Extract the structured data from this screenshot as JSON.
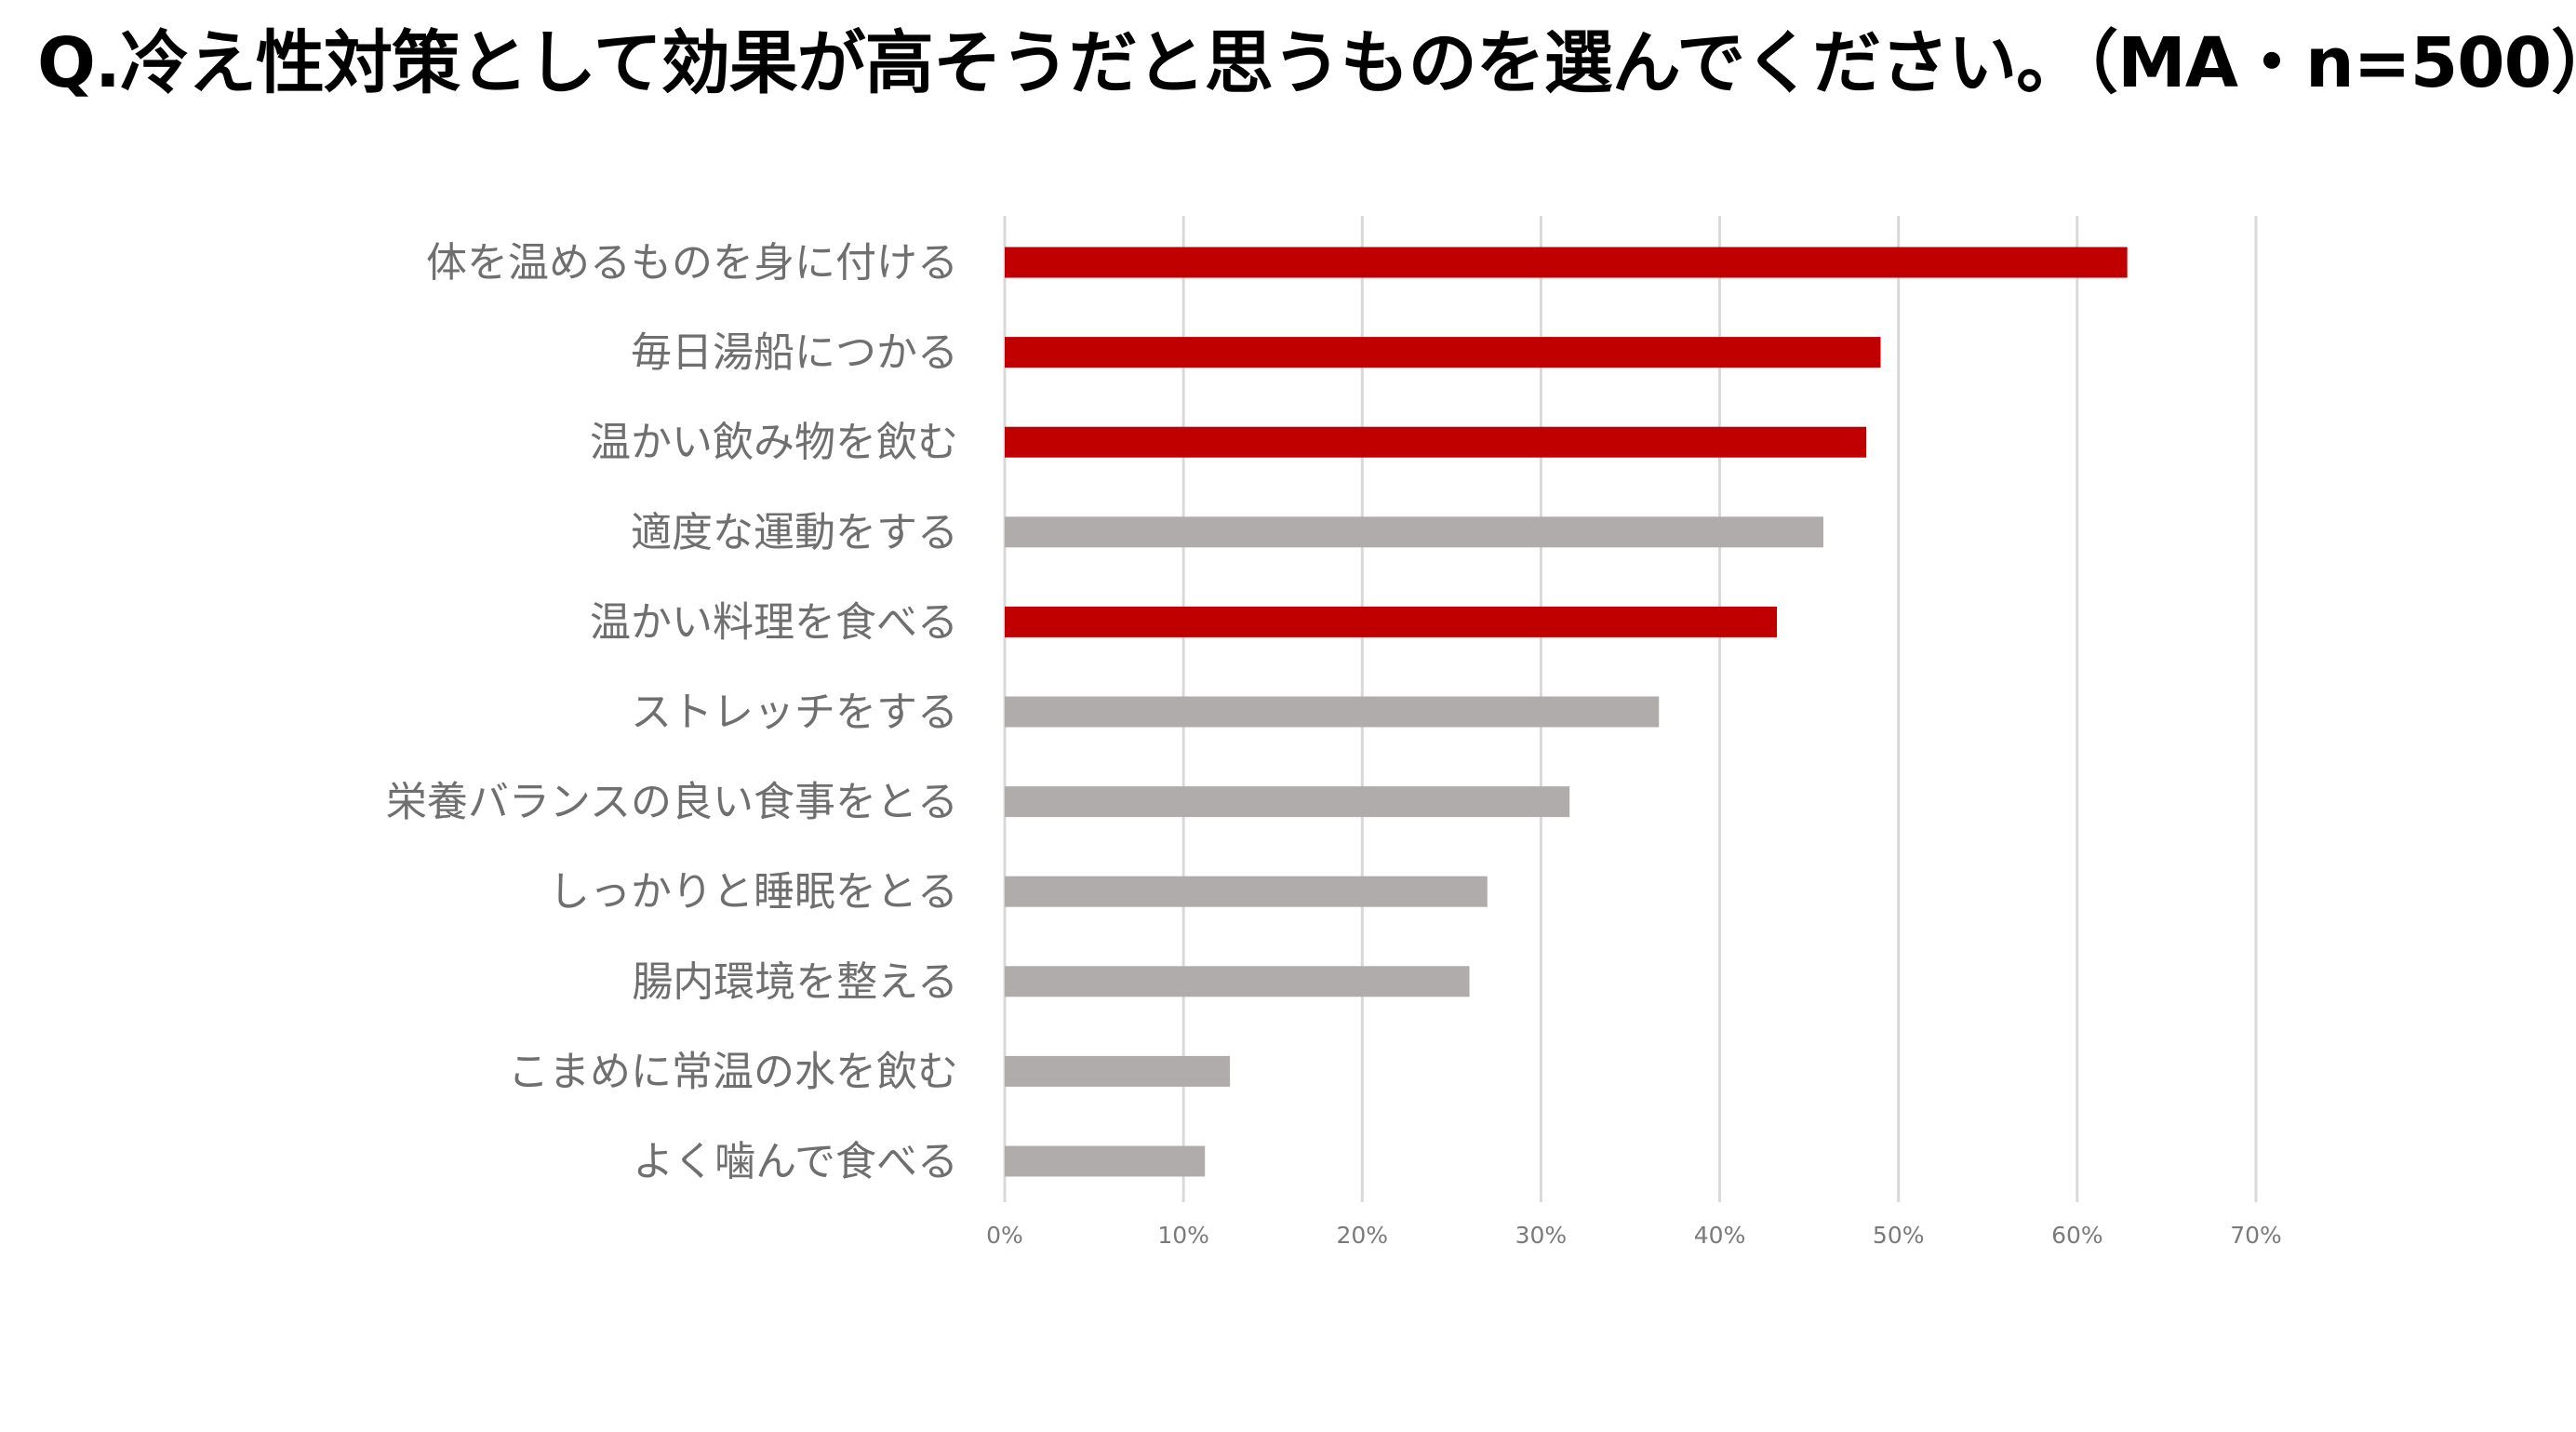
{
  "title": "Q.冷え性対策として効果が高そうだと思うものを選んでください。（MA・n=500）",
  "colors": {
    "highlight": "#c00000",
    "other": "#b0acac",
    "grid": "#d9d9d9",
    "label": "#6f6f6f"
  },
  "chart_data": {
    "type": "bar",
    "orientation": "horizontal",
    "title": "Q.冷え性対策として効果が高そうだと思うものを選んでください。（MA・n=500）",
    "categories": [
      "体を温めるものを身に付ける",
      "毎日湯船につかる",
      "温かい飲み物を飲む",
      "適度な運動をする",
      "温かい料理を食べる",
      "ストレッチをする",
      "栄養バランスの良い食事をとる",
      "しっかりと睡眠をとる",
      "腸内環境を整える",
      "こまめに常温の水を飲む",
      "よく噛んで食べる"
    ],
    "values": [
      62.8,
      49.0,
      48.2,
      45.8,
      43.2,
      36.6,
      31.6,
      27.0,
      26.0,
      12.6,
      11.2
    ],
    "highlighted": [
      true,
      true,
      true,
      false,
      true,
      false,
      false,
      false,
      false,
      false,
      false
    ],
    "xlim": [
      0,
      70
    ],
    "ticks": [
      0,
      10,
      20,
      30,
      40,
      50,
      60,
      70
    ],
    "tick_labels": [
      "0%",
      "10%",
      "20%",
      "30%",
      "40%",
      "50%",
      "60%",
      "70%"
    ],
    "grid": true,
    "legend": "none"
  }
}
